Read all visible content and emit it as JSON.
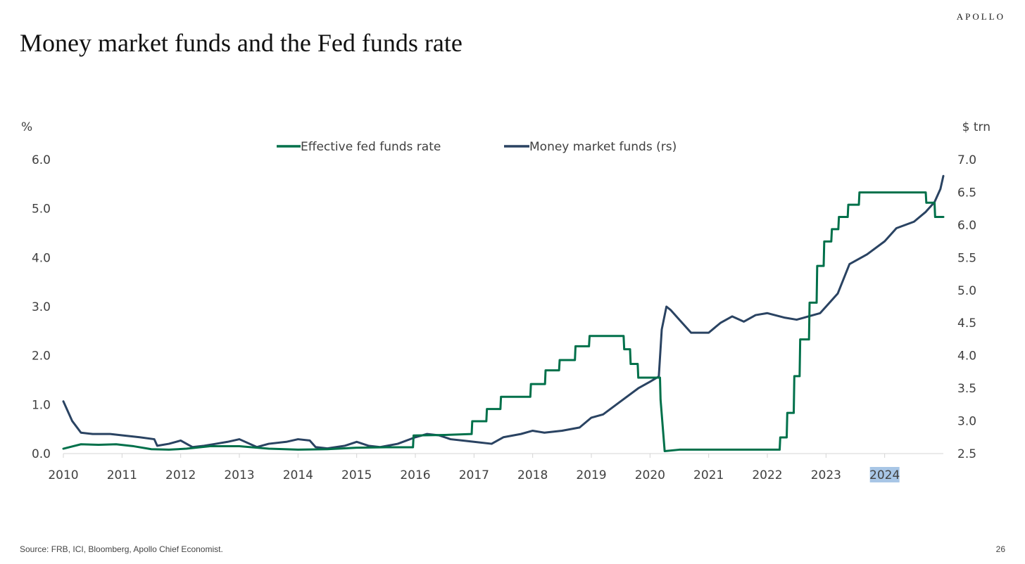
{
  "header": {
    "brand": "APOLLO",
    "title": "Money market funds and the Fed funds rate"
  },
  "footer": {
    "source": "Source: FRB, ICI, Bloomberg, Apollo Chief Economist.",
    "page_number": "26"
  },
  "chart_data": {
    "type": "line",
    "title": "Money market funds and the Fed funds rate",
    "y_left_unit": "%",
    "y_right_unit": "$ trn",
    "y_left_range": [
      0,
      6
    ],
    "y_right_range": [
      2.5,
      7
    ],
    "y_left_ticks": [
      "0.0",
      "1.0",
      "2.0",
      "3.0",
      "4.0",
      "5.0",
      "6.0"
    ],
    "y_right_ticks": [
      "2.5",
      "3.0",
      "3.5",
      "4.0",
      "4.5",
      "5.0",
      "5.5",
      "6.0",
      "6.5",
      "7.0"
    ],
    "x_range": [
      2010,
      2025
    ],
    "x_ticks": [
      "2010",
      "2011",
      "2012",
      "2013",
      "2014",
      "2015",
      "2016",
      "2017",
      "2018",
      "2019",
      "2020",
      "2021",
      "2022",
      "2023",
      "2024"
    ],
    "highlighted_tick": "2024",
    "grid": false,
    "legend_position": "top-center",
    "colors": {
      "fed_funds": "#00704a",
      "money_market": "#2a4362",
      "highlight": "#a8c6e6",
      "axis": "#d4d4d4"
    },
    "series": [
      {
        "name": "Effective fed funds rate",
        "axis": "left",
        "x": [
          2010.0,
          2010.1,
          2010.3,
          2010.6,
          2010.9,
          2011.2,
          2011.5,
          2011.8,
          2012.1,
          2012.5,
          2013.0,
          2013.5,
          2014.0,
          2014.5,
          2015.0,
          2015.5,
          2015.96,
          2015.97,
          2016.5,
          2016.96,
          2016.97,
          2017.21,
          2017.22,
          2017.45,
          2017.46,
          2017.96,
          2017.97,
          2018.21,
          2018.22,
          2018.45,
          2018.46,
          2018.72,
          2018.73,
          2018.96,
          2018.97,
          2019.55,
          2019.56,
          2019.66,
          2019.67,
          2019.79,
          2019.8,
          2020.17,
          2020.18,
          2020.25,
          2020.5,
          2021.0,
          2021.5,
          2022.0,
          2022.21,
          2022.22,
          2022.33,
          2022.34,
          2022.45,
          2022.46,
          2022.55,
          2022.56,
          2022.71,
          2022.72,
          2022.84,
          2022.85,
          2022.96,
          2022.97,
          2023.09,
          2023.1,
          2023.21,
          2023.22,
          2023.37,
          2023.38,
          2023.56,
          2023.57,
          2024.7,
          2024.71,
          2024.85,
          2024.86,
          2024.96,
          2025.0
        ],
        "values": [
          0.1,
          0.13,
          0.19,
          0.18,
          0.19,
          0.15,
          0.09,
          0.08,
          0.1,
          0.15,
          0.15,
          0.1,
          0.08,
          0.09,
          0.12,
          0.13,
          0.13,
          0.37,
          0.38,
          0.4,
          0.66,
          0.66,
          0.91,
          0.91,
          1.16,
          1.16,
          1.42,
          1.42,
          1.7,
          1.7,
          1.91,
          1.91,
          2.19,
          2.19,
          2.4,
          2.4,
          2.13,
          2.13,
          1.83,
          1.83,
          1.55,
          1.55,
          1.1,
          0.05,
          0.08,
          0.08,
          0.08,
          0.08,
          0.08,
          0.33,
          0.33,
          0.83,
          0.83,
          1.58,
          1.58,
          2.33,
          2.33,
          3.08,
          3.08,
          3.83,
          3.83,
          4.33,
          4.33,
          4.58,
          4.58,
          4.83,
          4.83,
          5.08,
          5.08,
          5.33,
          5.33,
          5.12,
          5.12,
          4.83,
          4.83,
          4.83
        ]
      },
      {
        "name": "Money market funds (rs)",
        "axis": "right",
        "x": [
          2010.0,
          2010.05,
          2010.15,
          2010.3,
          2010.5,
          2010.8,
          2011.0,
          2011.3,
          2011.55,
          2011.6,
          2011.8,
          2012.0,
          2012.2,
          2012.4,
          2012.6,
          2012.8,
          2013.0,
          2013.3,
          2013.5,
          2013.8,
          2014.0,
          2014.2,
          2014.3,
          2014.5,
          2014.8,
          2015.0,
          2015.2,
          2015.4,
          2015.7,
          2016.0,
          2016.2,
          2016.4,
          2016.6,
          2016.8,
          2017.0,
          2017.3,
          2017.5,
          2017.8,
          2018.0,
          2018.2,
          2018.5,
          2018.8,
          2019.0,
          2019.2,
          2019.5,
          2019.8,
          2020.0,
          2020.15,
          2020.2,
          2020.28,
          2020.35,
          2020.5,
          2020.7,
          2021.0,
          2021.2,
          2021.4,
          2021.6,
          2021.8,
          2022.0,
          2022.3,
          2022.5,
          2022.7,
          2022.9,
          2023.0,
          2023.2,
          2023.4,
          2023.7,
          2024.0,
          2024.2,
          2024.5,
          2024.7,
          2024.85,
          2024.95,
          2025.0
        ],
        "values": [
          3.3,
          3.2,
          3.0,
          2.82,
          2.8,
          2.8,
          2.78,
          2.75,
          2.72,
          2.62,
          2.65,
          2.7,
          2.6,
          2.62,
          2.65,
          2.68,
          2.72,
          2.6,
          2.65,
          2.68,
          2.72,
          2.7,
          2.6,
          2.58,
          2.62,
          2.68,
          2.62,
          2.6,
          2.65,
          2.75,
          2.8,
          2.78,
          2.72,
          2.7,
          2.68,
          2.65,
          2.75,
          2.8,
          2.85,
          2.82,
          2.85,
          2.9,
          3.05,
          3.1,
          3.3,
          3.5,
          3.6,
          3.68,
          4.4,
          4.75,
          4.7,
          4.55,
          4.35,
          4.35,
          4.5,
          4.6,
          4.52,
          4.62,
          4.65,
          4.58,
          4.55,
          4.6,
          4.65,
          4.75,
          4.95,
          5.4,
          5.55,
          5.75,
          5.95,
          6.05,
          6.2,
          6.35,
          6.55,
          6.75
        ]
      }
    ]
  }
}
